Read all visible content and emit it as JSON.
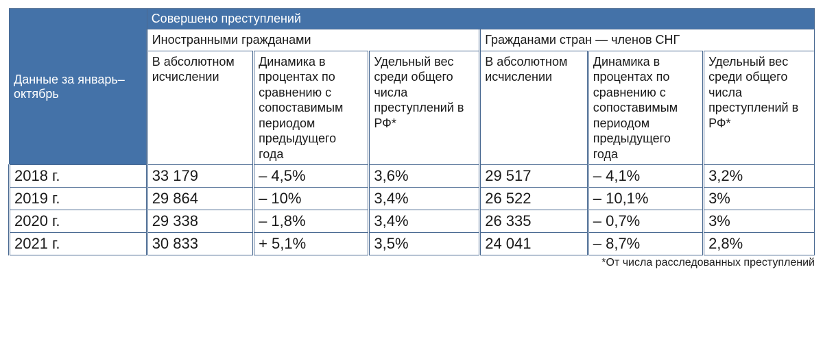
{
  "table": {
    "type": "table",
    "colors": {
      "header_bg": "#4472a8",
      "header_fg": "#ffffff",
      "border": "#4a6a92",
      "body_bg": "#ffffff",
      "body_fg": "#1a1a1a"
    },
    "fonts": {
      "header_size_pt": 14,
      "subheader_size_pt": 14,
      "data_size_pt": 17,
      "footnote_size_pt": 12
    },
    "row_header_label": "Данные за январь–октябрь",
    "super_header": "Совершено преступлений",
    "group_headers": [
      "Иностранными гражданами",
      "Гражданами стран — членов СНГ"
    ],
    "sub_headers": [
      "В абсолютном исчислении",
      "Динамика в процентах по сравнению с сопоставимым периодом предыдущего года",
      "Удельный вес среди общего числа преступлений в РФ*"
    ],
    "rows": [
      {
        "year": "2018 г.",
        "g1_abs": "33 179",
        "g1_dyn": "– 4,5%",
        "g1_share": "3,6%",
        "g2_abs": "29 517",
        "g2_dyn": "– 4,1%",
        "g2_share": "3,2%"
      },
      {
        "year": "2019 г.",
        "g1_abs": "29 864",
        "g1_dyn": "– 10%",
        "g1_share": "3,4%",
        "g2_abs": "26 522",
        "g2_dyn": "– 10,1%",
        "g2_share": "3%"
      },
      {
        "year": "2020 г.",
        "g1_abs": "29 338",
        "g1_dyn": "– 1,8%",
        "g1_share": "3,4%",
        "g2_abs": "26 335",
        "g2_dyn": "– 0,7%",
        "g2_share": "3%"
      },
      {
        "year": "2021 г.",
        "g1_abs": "30 833",
        "g1_dyn": "+ 5,1%",
        "g1_share": "3,5%",
        "g2_abs": "24 041",
        "g2_dyn": "– 8,7%",
        "g2_share": "2,8%"
      }
    ],
    "footnote": "*От числа расследованных преступлений"
  }
}
